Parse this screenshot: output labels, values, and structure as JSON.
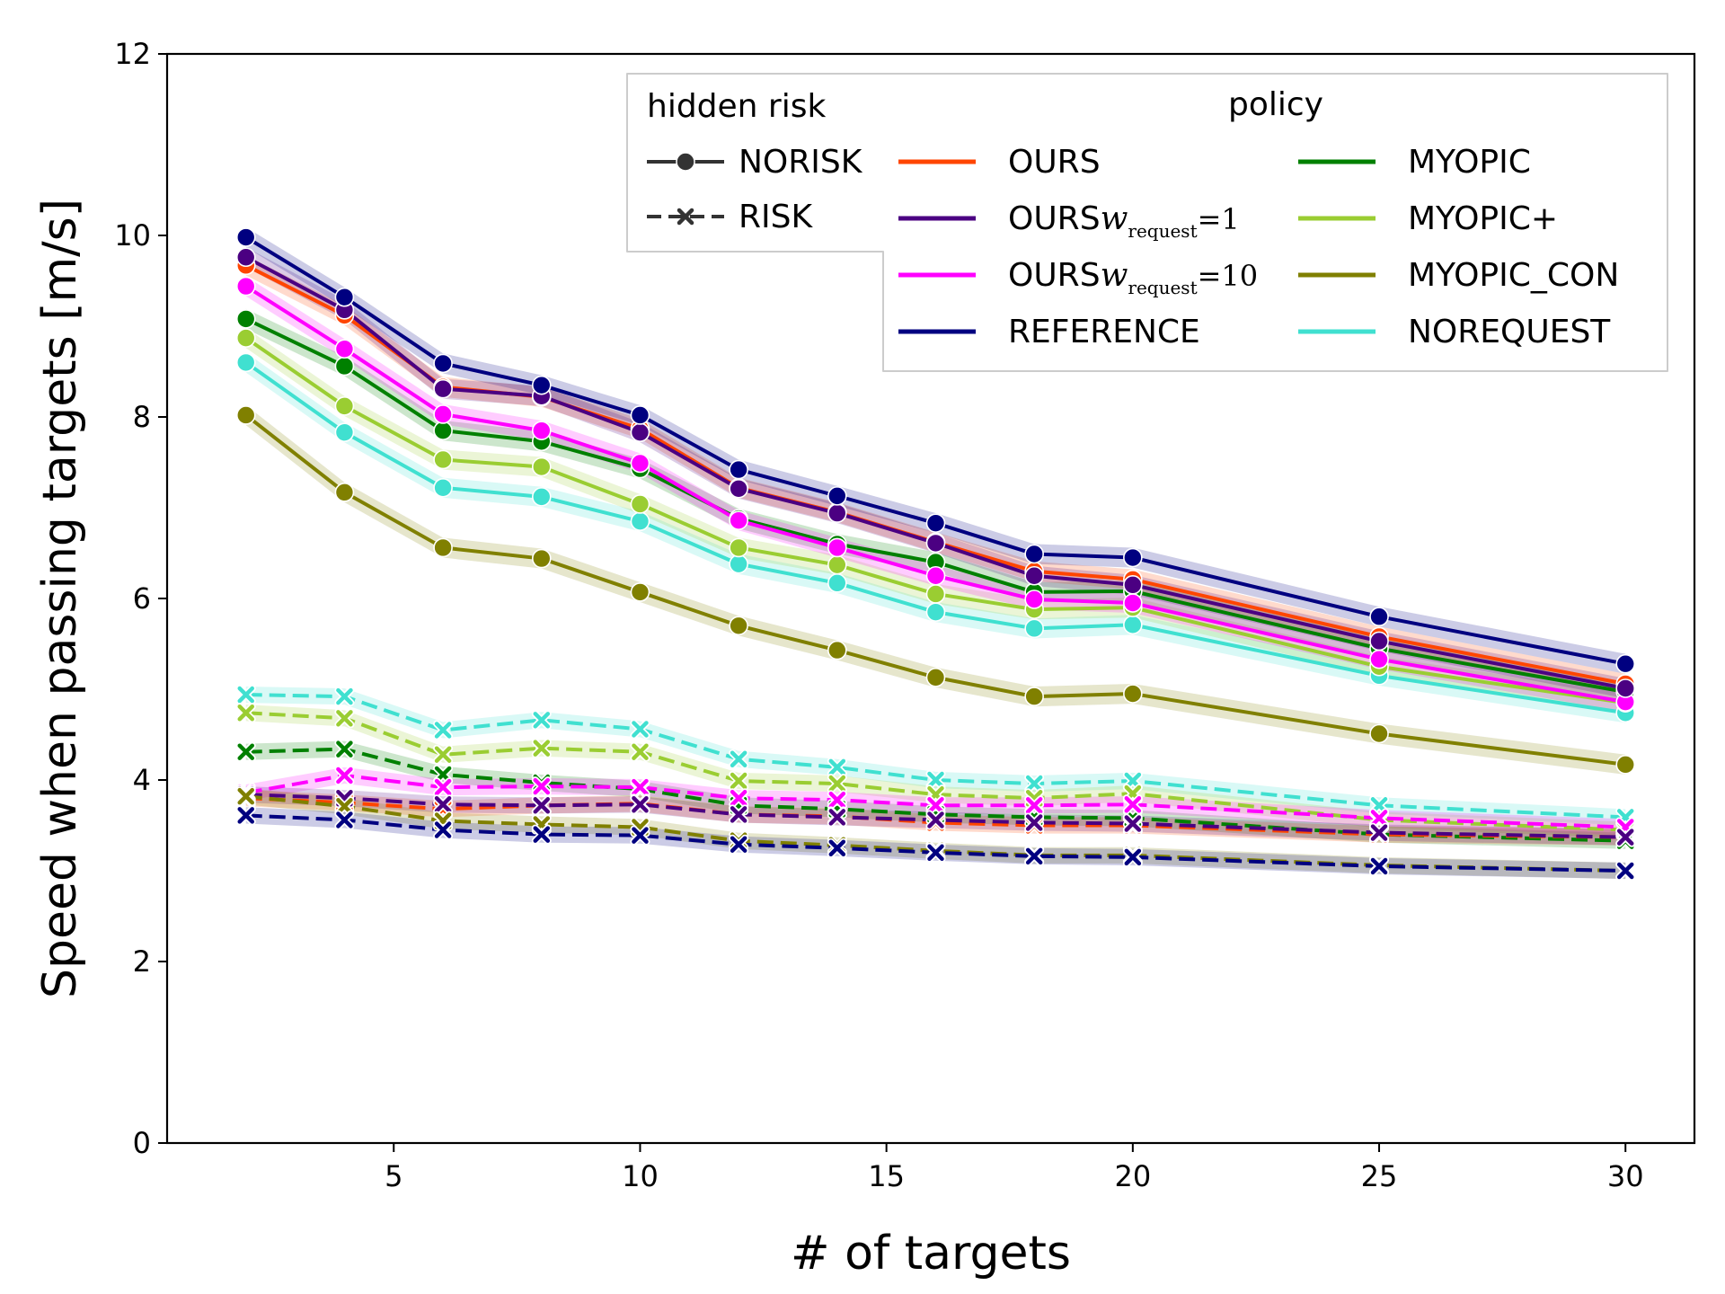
{
  "chart_data": {
    "type": "line",
    "xlabel": "# of targets",
    "ylabel": "Speed when passing targets [m/s]",
    "xlim": [
      0.4,
      31.4
    ],
    "ylim": [
      0,
      12
    ],
    "xticks": [
      5,
      10,
      15,
      20,
      25,
      30
    ],
    "yticks": [
      0,
      2,
      4,
      6,
      8,
      10,
      12
    ],
    "grid": false,
    "x": [
      2,
      4,
      6,
      8,
      10,
      12,
      14,
      16,
      18,
      20,
      25,
      30
    ],
    "legend": {
      "placement": "top-right",
      "style_title": "hidden risk",
      "color_title": "policy",
      "styles": [
        {
          "label": "NORISK",
          "marker": "circle",
          "dash": "solid"
        },
        {
          "label": "RISK",
          "marker": "x",
          "dash": "dashed"
        }
      ],
      "policies": [
        {
          "label": "OURS",
          "color": "#ff4500"
        },
        {
          "label": "OURS",
          "sub": "w",
          "subscript": "request",
          "suffix": "=1",
          "color": "#4b0082"
        },
        {
          "label": "OURS",
          "sub": "w",
          "subscript": "request",
          "suffix": "=10",
          "color": "#ff00ff"
        },
        {
          "label": "REFERENCE",
          "color": "#000080"
        },
        {
          "label": "MYOPIC",
          "color": "#008000"
        },
        {
          "label": "MYOPIC+",
          "color": "#9acd32"
        },
        {
          "label": "MYOPIC_CON",
          "color": "#808000"
        },
        {
          "label": "NOREQUEST",
          "color": "#40e0d0"
        }
      ]
    },
    "series": [
      {
        "name": "NOREQUEST",
        "risk": "NORISK",
        "color": "#40e0d0",
        "values": [
          8.6,
          7.83,
          7.22,
          7.12,
          6.85,
          6.38,
          6.17,
          5.85,
          5.67,
          5.71,
          5.15,
          4.74
        ]
      },
      {
        "name": "MYOPIC_CON",
        "risk": "NORISK",
        "color": "#808000",
        "values": [
          8.02,
          7.17,
          6.56,
          6.44,
          6.07,
          5.7,
          5.43,
          5.13,
          4.92,
          4.95,
          4.51,
          4.17
        ]
      },
      {
        "name": "MYOPIC+",
        "risk": "NORISK",
        "color": "#9acd32",
        "values": [
          8.87,
          8.12,
          7.53,
          7.45,
          7.04,
          6.56,
          6.37,
          6.05,
          5.88,
          5.9,
          5.25,
          4.85
        ]
      },
      {
        "name": "MYOPIC",
        "risk": "NORISK",
        "color": "#008000",
        "values": [
          9.08,
          8.56,
          7.85,
          7.73,
          7.43,
          6.88,
          6.6,
          6.4,
          6.07,
          6.08,
          5.45,
          4.97
        ]
      },
      {
        "name": "OURS w=10",
        "risk": "NORISK",
        "color": "#ff00ff",
        "values": [
          9.44,
          8.75,
          8.03,
          7.85,
          7.49,
          6.86,
          6.56,
          6.25,
          5.99,
          5.95,
          5.33,
          4.86
        ]
      },
      {
        "name": "OURS",
        "risk": "NORISK",
        "color": "#ff4500",
        "values": [
          9.67,
          9.12,
          8.33,
          8.22,
          7.87,
          7.22,
          6.95,
          6.62,
          6.3,
          6.21,
          5.58,
          5.06
        ]
      },
      {
        "name": "OURS w=1",
        "risk": "NORISK",
        "color": "#4b0082",
        "values": [
          9.76,
          9.18,
          8.31,
          8.23,
          7.83,
          7.21,
          6.94,
          6.61,
          6.25,
          6.15,
          5.53,
          5.01
        ]
      },
      {
        "name": "REFERENCE",
        "risk": "NORISK",
        "color": "#000080",
        "values": [
          9.98,
          9.32,
          8.59,
          8.35,
          8.02,
          7.42,
          7.13,
          6.83,
          6.49,
          6.45,
          5.8,
          5.28
        ]
      },
      {
        "name": "NOREQUEST",
        "risk": "RISK",
        "color": "#40e0d0",
        "values": [
          4.94,
          4.92,
          4.55,
          4.66,
          4.56,
          4.23,
          4.14,
          4.0,
          3.96,
          3.99,
          3.72,
          3.59
        ]
      },
      {
        "name": "MYOPIC+",
        "risk": "RISK",
        "color": "#9acd32",
        "values": [
          4.74,
          4.68,
          4.28,
          4.35,
          4.31,
          3.99,
          3.96,
          3.84,
          3.8,
          3.85,
          3.56,
          3.45
        ]
      },
      {
        "name": "MYOPIC",
        "risk": "RISK",
        "color": "#008000",
        "values": [
          4.31,
          4.34,
          4.06,
          3.97,
          3.9,
          3.72,
          3.68,
          3.62,
          3.59,
          3.58,
          3.4,
          3.33
        ]
      },
      {
        "name": "OURS w=10",
        "risk": "RISK",
        "color": "#ff00ff",
        "values": [
          3.86,
          4.05,
          3.92,
          3.93,
          3.92,
          3.8,
          3.78,
          3.72,
          3.72,
          3.73,
          3.58,
          3.48
        ]
      },
      {
        "name": "OURS",
        "risk": "RISK",
        "color": "#ff4500",
        "values": [
          3.8,
          3.75,
          3.68,
          3.72,
          3.74,
          3.62,
          3.6,
          3.53,
          3.5,
          3.5,
          3.4,
          3.37
        ]
      },
      {
        "name": "OURS w=1",
        "risk": "RISK",
        "color": "#4b0082",
        "values": [
          3.84,
          3.8,
          3.73,
          3.72,
          3.73,
          3.62,
          3.59,
          3.56,
          3.53,
          3.52,
          3.42,
          3.37
        ]
      },
      {
        "name": "MYOPIC_CON",
        "risk": "RISK",
        "color": "#808000",
        "values": [
          3.82,
          3.71,
          3.55,
          3.51,
          3.48,
          3.33,
          3.28,
          3.22,
          3.17,
          3.17,
          3.06,
          3.0
        ]
      },
      {
        "name": "REFERENCE",
        "risk": "RISK",
        "color": "#000080",
        "values": [
          3.61,
          3.56,
          3.45,
          3.4,
          3.39,
          3.29,
          3.25,
          3.2,
          3.16,
          3.15,
          3.05,
          3.0
        ]
      }
    ]
  }
}
